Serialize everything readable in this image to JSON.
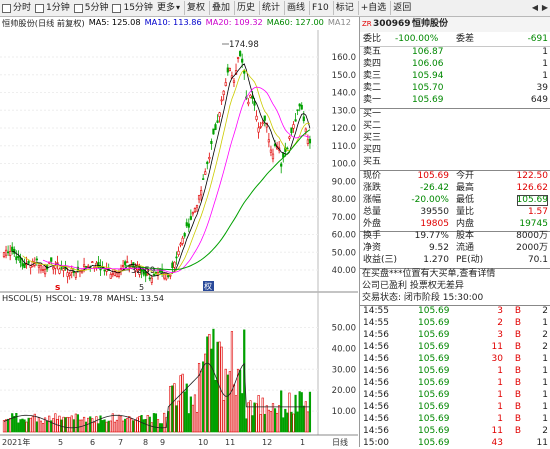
{
  "toolbar": {
    "items": [
      "分时",
      "1分钟",
      "5分钟",
      "15分钟",
      "更多",
      "复权",
      "叠加",
      "历史",
      "统计",
      "画线",
      "F10",
      "标记",
      "+自选",
      "返回"
    ],
    "checkbox_items": [
      "分时",
      "1分钟",
      "5分钟",
      "15分钟"
    ],
    "more_caret": "▾",
    "nav_left": "◀",
    "nav_right": "▶"
  },
  "chart": {
    "header": {
      "name": "恒帅股份(日线 前复权)",
      "ma5": "MA5: 125.08",
      "ma10": "MA10: 113.86",
      "ma20": "MA20: 109.32",
      "ma60": "MA60: 127.00",
      "ma120": "MA12"
    },
    "colors": {
      "ma5": "#000000",
      "ma10": "#a0a000",
      "ma20": "#ff00ff",
      "ma60": "#00a000",
      "ma120": "#8c8c8c",
      "up": "#e00000",
      "down": "#00a000",
      "header_price": "#0000ff"
    },
    "y_ticks": [
      "160.0",
      "150.0",
      "140.0",
      "130.0",
      "120.0",
      "110.0",
      "100.0",
      "90.00",
      "80.00",
      "70.00",
      "60.00",
      "50.00",
      "40.00"
    ],
    "high_label": "174.98",
    "low_label": "32.59",
    "markers": {
      "s_marker": "s",
      "ex_dividend": "权",
      "extra": "5"
    },
    "indicator_header": {
      "name": "HSCOL(5)",
      "hscol": "HSCOL: 19.78",
      "mahsl": "MAHSL: 13.54"
    },
    "vol_ticks": [
      "50.00",
      "40.00",
      "30.00",
      "20.00",
      "10.00"
    ],
    "x_labels": [
      "2021年",
      "5",
      "6",
      "7",
      "8",
      "9",
      "10",
      "11",
      "12",
      "1"
    ],
    "bottom_tabs": [
      "日线"
    ]
  },
  "quote": {
    "code_badge": "ZR",
    "code": "300969",
    "name": "恒帅股份",
    "wei_bi": {
      "label": "委比",
      "value": "-100.00%"
    },
    "wei_cha": {
      "label": "委差",
      "value": "-691"
    },
    "sell_orders": [
      {
        "label": "卖五",
        "price": "106.87",
        "vol": "1"
      },
      {
        "label": "卖四",
        "price": "106.06",
        "vol": "1"
      },
      {
        "label": "卖三",
        "price": "105.94",
        "vol": "1"
      },
      {
        "label": "卖二",
        "price": "105.70",
        "vol": "39"
      },
      {
        "label": "卖一",
        "price": "105.69",
        "vol": "649"
      }
    ],
    "buy_labels": [
      "买一",
      "买二",
      "买三",
      "买四",
      "买五"
    ],
    "stats": [
      {
        "l1": "现价",
        "v1": "105.69",
        "l2": "今开",
        "v2": "122.50"
      },
      {
        "l1": "涨跌",
        "v1": "-26.42",
        "l2": "最高",
        "v2": "126.62"
      },
      {
        "l1": "涨幅",
        "v1": "-20.00%",
        "l2": "最低",
        "v2": "105.69"
      },
      {
        "l1": "总量",
        "v1": "39550",
        "l2": "量比",
        "v2": "1.57"
      },
      {
        "l1": "外盘",
        "v1": "19805",
        "l2": "内盘",
        "v2": "19745"
      },
      {
        "l1": "换手",
        "v1": "19.77%",
        "l2": "股本",
        "v2": "8000万"
      },
      {
        "l1": "净资",
        "v1": "9.52",
        "l2": "流通",
        "v2": "2000万"
      },
      {
        "l1": "收益(三)",
        "v1": "1.270",
        "l2": "PE(动)",
        "v2": "70.1"
      }
    ],
    "notes": [
      "在买盘***位置有大买单,查看详情",
      "公司已盈利 投票权无差异",
      "交易状态: 闭市阶段  15:30:00"
    ],
    "ticks": [
      {
        "time": "14:55",
        "price": "105.69",
        "vol": "3",
        "bs": "B",
        "num": "2"
      },
      {
        "time": "14:55",
        "price": "105.69",
        "vol": "2",
        "bs": "B",
        "num": "1"
      },
      {
        "time": "14:56",
        "price": "105.69",
        "vol": "3",
        "bs": "B",
        "num": "2"
      },
      {
        "time": "14:56",
        "price": "105.69",
        "vol": "11",
        "bs": "B",
        "num": "2"
      },
      {
        "time": "14:56",
        "price": "105.69",
        "vol": "30",
        "bs": "B",
        "num": "1"
      },
      {
        "time": "14:56",
        "price": "105.69",
        "vol": "1",
        "bs": "B",
        "num": "1"
      },
      {
        "time": "14:56",
        "price": "105.69",
        "vol": "1",
        "bs": "B",
        "num": "1"
      },
      {
        "time": "14:56",
        "price": "105.69",
        "vol": "1",
        "bs": "B",
        "num": "1"
      },
      {
        "time": "14:56",
        "price": "105.69",
        "vol": "1",
        "bs": "B",
        "num": "1"
      },
      {
        "time": "14:56",
        "price": "105.69",
        "vol": "1",
        "bs": "B",
        "num": "1"
      },
      {
        "time": "14:56",
        "price": "105.69",
        "vol": "11",
        "bs": "B",
        "num": "2"
      },
      {
        "time": "15:00",
        "price": "105.69",
        "vol": "43",
        "bs": "",
        "num": "11"
      }
    ]
  }
}
